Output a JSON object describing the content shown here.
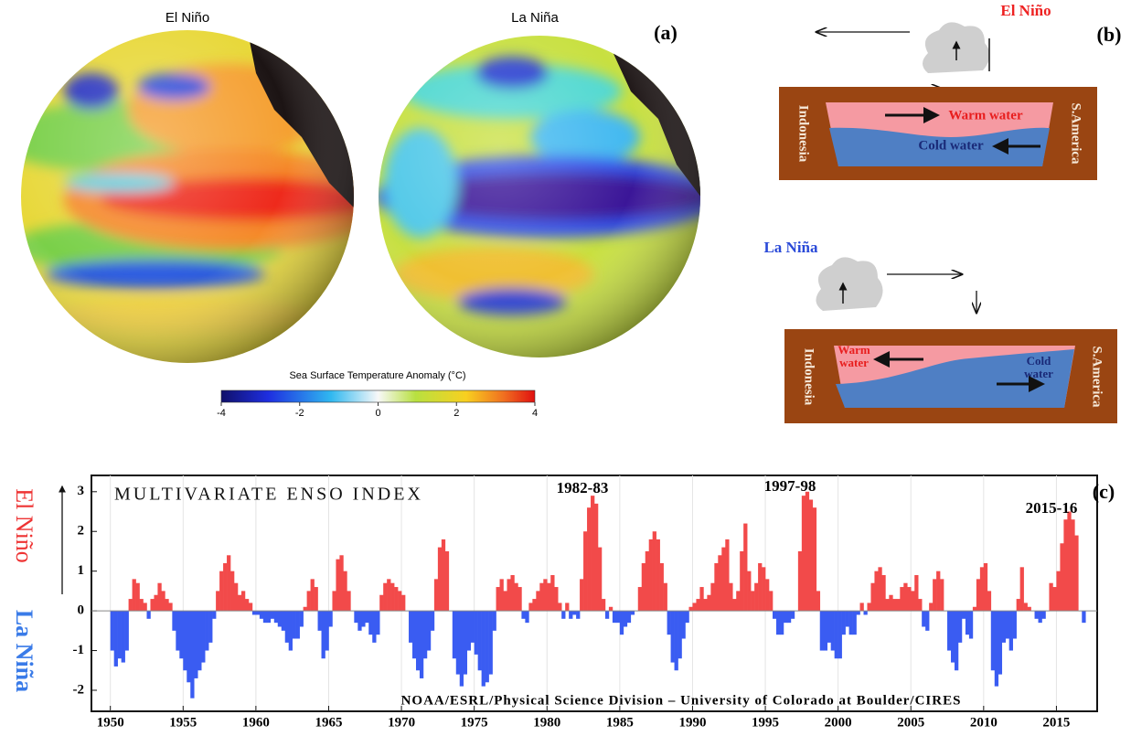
{
  "panel_a": {
    "label": "(a)",
    "left_title": "El Niño",
    "right_title": "La Niña",
    "colorbar": {
      "title": "Sea Surface Temperature Anomaly (°C)",
      "lim": [
        -4,
        4
      ],
      "ticks": [
        -4,
        -2,
        0,
        2,
        4
      ]
    }
  },
  "panel_b": {
    "label": "(b)",
    "el_nino": {
      "title": "El Niño",
      "west": "Indonesia",
      "east": "S.America",
      "warm": "Warm water",
      "cold": "Cold water"
    },
    "la_nina": {
      "title": "La Niña",
      "west": "Indonesia",
      "east": "S.America",
      "warm": [
        "Warm",
        "water"
      ],
      "cold": [
        "Cold",
        "water"
      ]
    }
  },
  "chart_data": {
    "type": "bar",
    "title": "MULTIVARIATE ENSO INDEX",
    "panel_label": "(c)",
    "source": "NOAA/ESRL/Physical Science Division – University of Colorado at Boulder/CIRES",
    "upper_label": "El Niño",
    "lower_label": "La Niña",
    "annotations": [
      "1982-83",
      "1997-98",
      "2015-16"
    ],
    "positive_color": "#f24a4a",
    "negative_color": "#3a5cf2",
    "upper_color": "#ee3333",
    "lower_color": "#3a7be8",
    "grid": true,
    "xlim": [
      1948.7,
      2017.8
    ],
    "ylim": [
      -2.53,
      3.41
    ],
    "xticks": [
      1950,
      1955,
      1960,
      1965,
      1970,
      1975,
      1980,
      1985,
      1990,
      1995,
      2000,
      2005,
      2010,
      2015
    ],
    "yticks": [
      -2,
      -1,
      0,
      1,
      2,
      3
    ],
    "x": [
      1950,
      1950.25,
      1950.5,
      1950.75,
      1951,
      1951.25,
      1951.5,
      1951.75,
      1952,
      1952.25,
      1952.5,
      1952.75,
      1953,
      1953.25,
      1953.5,
      1953.75,
      1954,
      1954.25,
      1954.5,
      1954.75,
      1955,
      1955.25,
      1955.5,
      1955.75,
      1956,
      1956.25,
      1956.5,
      1956.75,
      1957,
      1957.25,
      1957.5,
      1957.75,
      1958,
      1958.25,
      1958.5,
      1958.75,
      1959,
      1959.25,
      1959.5,
      1959.75,
      1960,
      1960.25,
      1960.5,
      1960.75,
      1961,
      1961.25,
      1961.5,
      1961.75,
      1962,
      1962.25,
      1962.5,
      1962.75,
      1963,
      1963.25,
      1963.5,
      1963.75,
      1964,
      1964.25,
      1964.5,
      1964.75,
      1965,
      1965.25,
      1965.5,
      1965.75,
      1966,
      1966.25,
      1966.5,
      1966.75,
      1967,
      1967.25,
      1967.5,
      1967.75,
      1968,
      1968.25,
      1968.5,
      1968.75,
      1969,
      1969.25,
      1969.5,
      1969.75,
      1970,
      1970.25,
      1970.5,
      1970.75,
      1971,
      1971.25,
      1971.5,
      1971.75,
      1972,
      1972.25,
      1972.5,
      1972.75,
      1973,
      1973.25,
      1973.5,
      1973.75,
      1974,
      1974.25,
      1974.5,
      1974.75,
      1975,
      1975.25,
      1975.5,
      1975.75,
      1976,
      1976.25,
      1976.5,
      1976.75,
      1977,
      1977.25,
      1977.5,
      1977.75,
      1978,
      1978.25,
      1978.5,
      1978.75,
      1979,
      1979.25,
      1979.5,
      1979.75,
      1980,
      1980.25,
      1980.5,
      1980.75,
      1981,
      1981.25,
      1981.5,
      1981.75,
      1982,
      1982.25,
      1982.5,
      1982.75,
      1983,
      1983.25,
      1983.5,
      1983.75,
      1984,
      1984.25,
      1984.5,
      1984.75,
      1985,
      1985.25,
      1985.5,
      1985.75,
      1986,
      1986.25,
      1986.5,
      1986.75,
      1987,
      1987.25,
      1987.5,
      1987.75,
      1988,
      1988.25,
      1988.5,
      1988.75,
      1989,
      1989.25,
      1989.5,
      1989.75,
      1990,
      1990.25,
      1990.5,
      1990.75,
      1991,
      1991.25,
      1991.5,
      1991.75,
      1992,
      1992.25,
      1992.5,
      1992.75,
      1993,
      1993.25,
      1993.5,
      1993.75,
      1994,
      1994.25,
      1994.5,
      1994.75,
      1995,
      1995.25,
      1995.5,
      1995.75,
      1996,
      1996.25,
      1996.5,
      1996.75,
      1997,
      1997.25,
      1997.5,
      1997.75,
      1998,
      1998.25,
      1998.5,
      1998.75,
      1999,
      1999.25,
      1999.5,
      1999.75,
      2000,
      2000.25,
      2000.5,
      2000.75,
      2001,
      2001.25,
      2001.5,
      2001.75,
      2002,
      2002.25,
      2002.5,
      2002.75,
      2003,
      2003.25,
      2003.5,
      2003.75,
      2004,
      2004.25,
      2004.5,
      2004.75,
      2005,
      2005.25,
      2005.5,
      2005.75,
      2006,
      2006.25,
      2006.5,
      2006.75,
      2007,
      2007.25,
      2007.5,
      2007.75,
      2008,
      2008.25,
      2008.5,
      2008.75,
      2009,
      2009.25,
      2009.5,
      2009.75,
      2010,
      2010.25,
      2010.5,
      2010.75,
      2011,
      2011.25,
      2011.5,
      2011.75,
      2012,
      2012.25,
      2012.5,
      2012.75,
      2013,
      2013.25,
      2013.5,
      2013.75,
      2014,
      2014.25,
      2014.5,
      2014.75,
      2015,
      2015.25,
      2015.5,
      2015.75,
      2016,
      2016.25,
      2016.5,
      2016.75
    ],
    "values": [
      -1.0,
      -1.4,
      -1.2,
      -1.3,
      -1.0,
      0.3,
      0.8,
      0.7,
      0.3,
      0.2,
      -0.2,
      0.3,
      0.4,
      0.7,
      0.5,
      0.3,
      0.2,
      -0.5,
      -1.0,
      -1.2,
      -1.5,
      -1.8,
      -2.2,
      -1.7,
      -1.5,
      -1.3,
      -1.0,
      -0.8,
      -0.2,
      0.5,
      1.0,
      1.2,
      1.4,
      1.0,
      0.7,
      0.4,
      0.5,
      0.3,
      0.2,
      -0.1,
      -0.1,
      -0.2,
      -0.3,
      -0.3,
      -0.2,
      -0.3,
      -0.4,
      -0.5,
      -0.8,
      -1.0,
      -0.7,
      -0.7,
      -0.4,
      0.1,
      0.5,
      0.8,
      0.6,
      -0.5,
      -1.2,
      -1.0,
      -0.4,
      0.5,
      1.3,
      1.4,
      1.0,
      0.5,
      0.0,
      -0.3,
      -0.5,
      -0.4,
      -0.3,
      -0.6,
      -0.8,
      -0.6,
      0.4,
      0.7,
      0.8,
      0.7,
      0.6,
      0.5,
      0.4,
      0.0,
      -0.8,
      -1.2,
      -1.5,
      -1.7,
      -1.2,
      -1.0,
      -0.5,
      0.8,
      1.6,
      1.8,
      1.5,
      0.0,
      -1.2,
      -1.6,
      -1.9,
      -1.6,
      -1.0,
      -0.8,
      -1.1,
      -1.5,
      -1.9,
      -1.8,
      -1.6,
      -0.5,
      0.6,
      0.8,
      0.5,
      0.8,
      0.9,
      0.7,
      0.6,
      -0.2,
      -0.3,
      0.2,
      0.3,
      0.5,
      0.7,
      0.8,
      0.7,
      0.9,
      0.6,
      0.2,
      -0.2,
      0.2,
      -0.2,
      -0.1,
      -0.2,
      0.8,
      2.0,
      2.6,
      2.9,
      2.7,
      1.6,
      0.3,
      -0.2,
      0.1,
      -0.3,
      -0.3,
      -0.6,
      -0.4,
      -0.3,
      -0.1,
      0.0,
      0.6,
      1.2,
      1.5,
      1.8,
      2.0,
      1.8,
      1.2,
      0.7,
      -0.6,
      -1.3,
      -1.5,
      -1.2,
      -0.7,
      -0.3,
      0.1,
      0.2,
      0.3,
      0.6,
      0.3,
      0.4,
      0.7,
      1.2,
      1.4,
      1.6,
      1.8,
      0.7,
      0.3,
      0.5,
      1.5,
      2.2,
      1.0,
      0.5,
      0.7,
      1.2,
      1.1,
      0.8,
      0.5,
      -0.2,
      -0.6,
      -0.6,
      -0.3,
      -0.3,
      -0.2,
      0.0,
      1.5,
      2.9,
      3.0,
      2.8,
      2.6,
      0.5,
      -1.0,
      -1.0,
      -0.8,
      -1.0,
      -1.2,
      -1.2,
      -0.6,
      -0.4,
      -0.6,
      -0.6,
      -0.1,
      0.2,
      -0.1,
      0.2,
      0.7,
      1.0,
      1.1,
      0.9,
      0.3,
      0.4,
      0.3,
      0.3,
      0.6,
      0.7,
      0.6,
      0.5,
      0.9,
      0.3,
      -0.4,
      -0.5,
      0.2,
      0.8,
      1.0,
      0.8,
      0.0,
      -1.0,
      -1.3,
      -1.5,
      -0.8,
      -0.2,
      -0.6,
      -0.7,
      0.1,
      0.8,
      1.1,
      1.2,
      0.5,
      -1.5,
      -1.9,
      -1.6,
      -0.8,
      -0.7,
      -1.0,
      -0.7,
      0.3,
      1.1,
      0.2,
      0.1,
      0.0,
      -0.2,
      -0.3,
      -0.2,
      0.0,
      0.7,
      0.6,
      1.0,
      1.7,
      2.3,
      2.5,
      2.3,
      1.9,
      0.0,
      -0.3
    ]
  }
}
